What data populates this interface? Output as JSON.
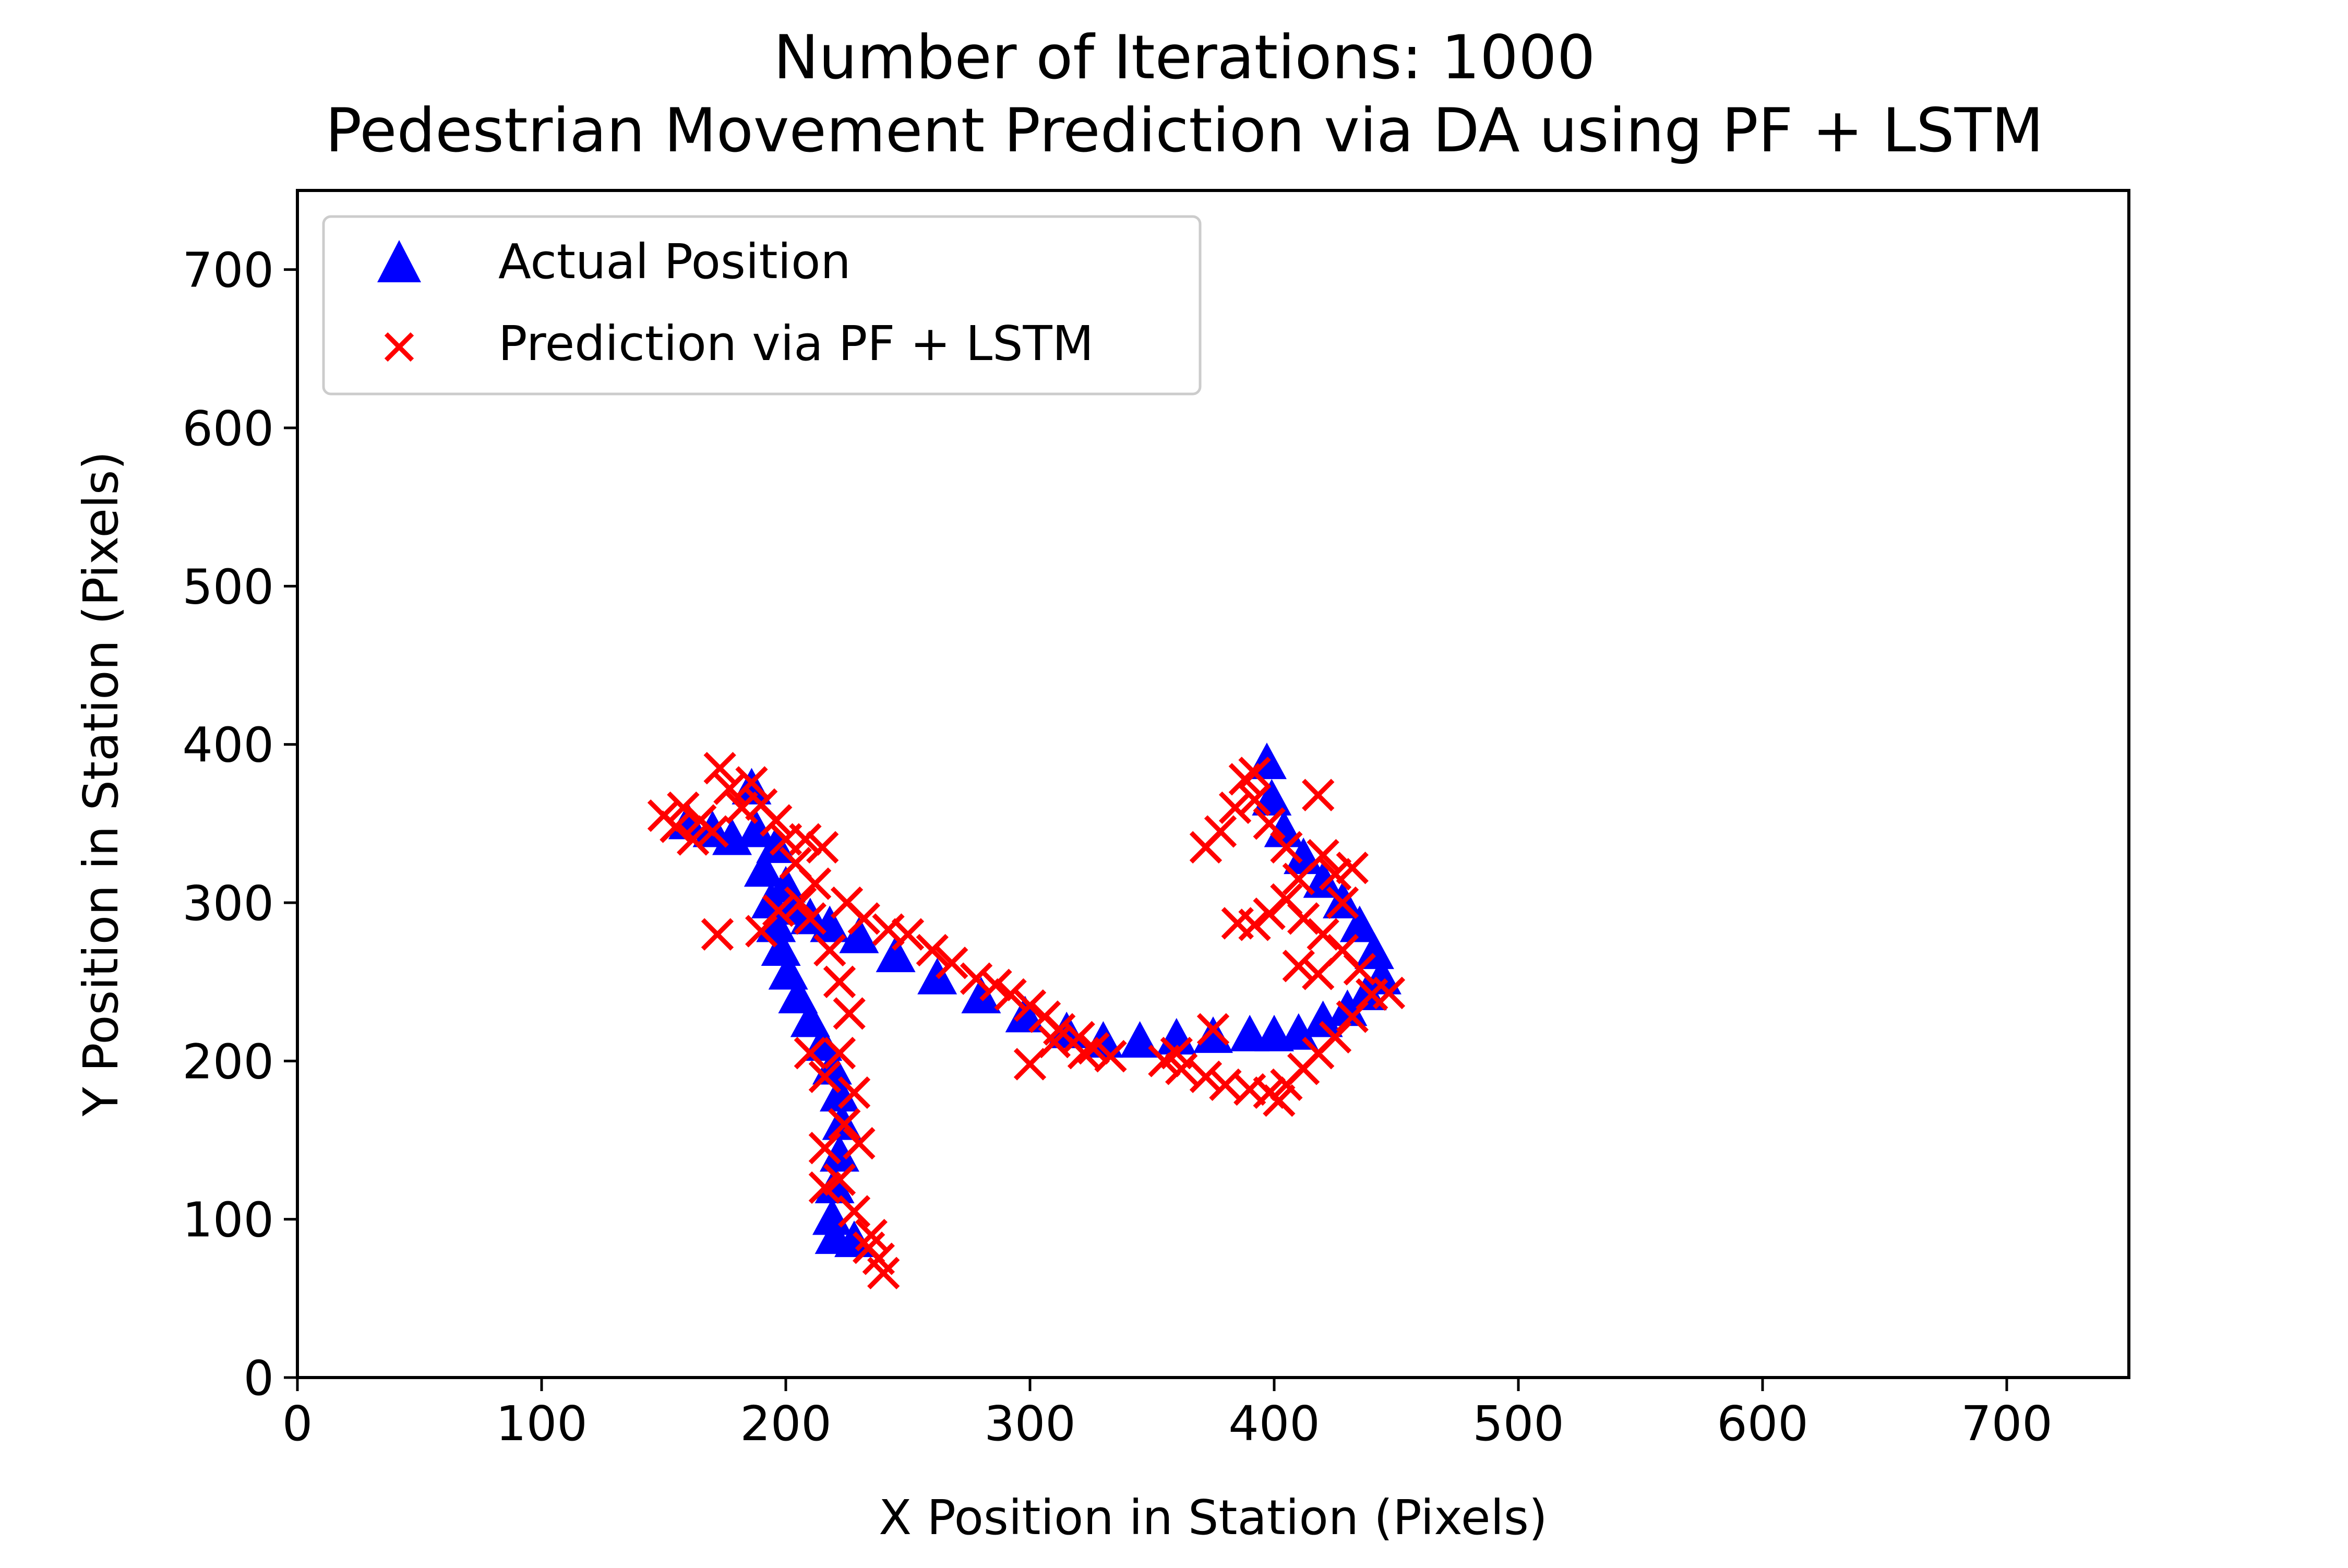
{
  "chart_data": {
    "type": "scatter",
    "title": "Number of Iterations: 1000",
    "subtitle": "Pedestrian Movement Prediction via DA using PF + LSTM",
    "xlabel": "X Position in Station (Pixels)",
    "ylabel": "Y Position in Station (Pixels)",
    "xlim": [
      0,
      750
    ],
    "ylim": [
      0,
      750
    ],
    "xticks": [
      "0",
      "100",
      "200",
      "300",
      "400",
      "500",
      "600",
      "700"
    ],
    "yticks": [
      "0",
      "100",
      "200",
      "300",
      "400",
      "500",
      "600",
      "700"
    ],
    "grid": false,
    "legend_position": "upper-left",
    "series": [
      {
        "name": "Actual Position",
        "marker": "triangle",
        "color": "#0000ff",
        "points": [
          [
            186,
            372
          ],
          [
            188,
            345
          ],
          [
            191,
            320
          ],
          [
            194,
            300
          ],
          [
            196,
            285
          ],
          [
            198,
            270
          ],
          [
            201,
            255
          ],
          [
            205,
            240
          ],
          [
            210,
            225
          ],
          [
            215,
            210
          ],
          [
            219,
            195
          ],
          [
            222,
            178
          ],
          [
            223,
            160
          ],
          [
            222,
            140
          ],
          [
            220,
            120
          ],
          [
            219,
            100
          ],
          [
            220,
            88
          ],
          [
            228,
            86
          ],
          [
            196,
            335
          ],
          [
            200,
            310
          ],
          [
            204,
            296
          ],
          [
            210,
            290
          ],
          [
            218,
            285
          ],
          [
            230,
            278
          ],
          [
            245,
            266
          ],
          [
            262,
            252
          ],
          [
            280,
            240
          ],
          [
            298,
            228
          ],
          [
            315,
            218
          ],
          [
            330,
            212
          ],
          [
            345,
            212
          ],
          [
            360,
            214
          ],
          [
            375,
            215
          ],
          [
            390,
            216
          ],
          [
            400,
            216
          ],
          [
            410,
            217
          ],
          [
            420,
            225
          ],
          [
            430,
            232
          ],
          [
            438,
            242
          ],
          [
            444,
            252
          ],
          [
            441,
            268
          ],
          [
            435,
            285
          ],
          [
            428,
            300
          ],
          [
            420,
            313
          ],
          [
            412,
            328
          ],
          [
            404,
            345
          ],
          [
            399,
            365
          ],
          [
            397,
            388
          ],
          [
            170,
            345
          ],
          [
            178,
            340
          ],
          [
            160,
            350
          ]
        ]
      },
      {
        "name": "Prediction via PF + LSTM",
        "marker": "x",
        "color": "#ff0000",
        "points": [
          [
            150,
            355
          ],
          [
            155,
            348
          ],
          [
            158,
            360
          ],
          [
            162,
            340
          ],
          [
            165,
            352
          ],
          [
            170,
            345
          ],
          [
            173,
            385
          ],
          [
            177,
            372
          ],
          [
            182,
            360
          ],
          [
            186,
            376
          ],
          [
            190,
            362
          ],
          [
            196,
            352
          ],
          [
            200,
            340
          ],
          [
            204,
            325
          ],
          [
            208,
            340
          ],
          [
            215,
            335
          ],
          [
            212,
            312
          ],
          [
            206,
            300
          ],
          [
            197,
            295
          ],
          [
            190,
            282
          ],
          [
            172,
            280
          ],
          [
            210,
            290
          ],
          [
            218,
            270
          ],
          [
            222,
            250
          ],
          [
            226,
            230
          ],
          [
            222,
            205
          ],
          [
            216,
            190
          ],
          [
            210,
            205
          ],
          [
            228,
            180
          ],
          [
            224,
            160
          ],
          [
            216,
            145
          ],
          [
            230,
            148
          ],
          [
            222,
            125
          ],
          [
            216,
            120
          ],
          [
            228,
            105
          ],
          [
            235,
            90
          ],
          [
            238,
            75
          ],
          [
            240,
            66
          ],
          [
            234,
            82
          ],
          [
            225,
            300
          ],
          [
            232,
            290
          ],
          [
            242,
            283
          ],
          [
            250,
            280
          ],
          [
            260,
            270
          ],
          [
            268,
            262
          ],
          [
            278,
            252
          ],
          [
            286,
            248
          ],
          [
            292,
            242
          ],
          [
            300,
            235
          ],
          [
            306,
            228
          ],
          [
            312,
            220
          ],
          [
            320,
            215
          ],
          [
            326,
            208
          ],
          [
            333,
            203
          ],
          [
            300,
            198
          ],
          [
            310,
            212
          ],
          [
            322,
            205
          ],
          [
            355,
            200
          ],
          [
            362,
            195
          ],
          [
            372,
            190
          ],
          [
            380,
            185
          ],
          [
            390,
            182
          ],
          [
            398,
            180
          ],
          [
            405,
            185
          ],
          [
            412,
            195
          ],
          [
            402,
            175
          ],
          [
            418,
            205
          ],
          [
            425,
            215
          ],
          [
            432,
            228
          ],
          [
            440,
            242
          ],
          [
            447,
            243
          ],
          [
            435,
            258
          ],
          [
            428,
            270
          ],
          [
            420,
            280
          ],
          [
            412,
            290
          ],
          [
            405,
            302
          ],
          [
            398,
            293
          ],
          [
            392,
            286
          ],
          [
            385,
            287
          ],
          [
            410,
            260
          ],
          [
            418,
            255
          ],
          [
            428,
            300
          ],
          [
            432,
            322
          ],
          [
            420,
            330
          ],
          [
            410,
            315
          ],
          [
            405,
            335
          ],
          [
            398,
            350
          ],
          [
            392,
            365
          ],
          [
            388,
            378
          ],
          [
            384,
            360
          ],
          [
            378,
            345
          ],
          [
            372,
            335
          ],
          [
            392,
            382
          ],
          [
            418,
            368
          ],
          [
            425,
            318
          ],
          [
            375,
            220
          ],
          [
            360,
            205
          ]
        ]
      }
    ]
  }
}
